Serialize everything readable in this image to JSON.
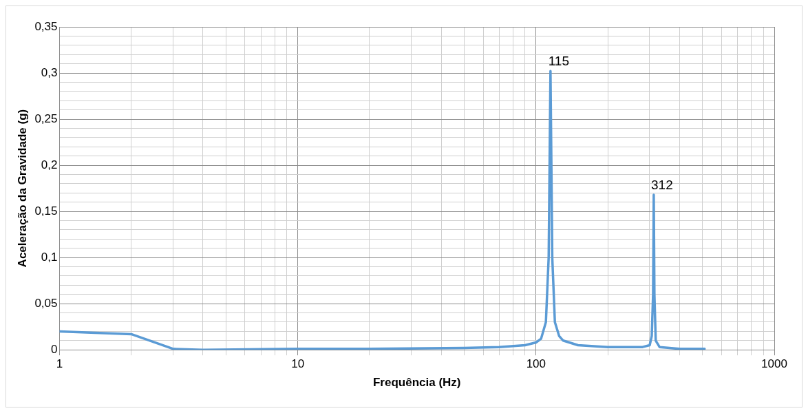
{
  "chart_data": {
    "type": "line",
    "xlabel": "Frequência (Hz)",
    "ylabel": "Aceleração da Gravidade (g)",
    "log": "x",
    "grid": true,
    "legend": false,
    "marker": "none",
    "line_style": "solid",
    "xlim": [
      1,
      1000
    ],
    "xticks": [
      1,
      {
        "value": 2,
        "label": null
      },
      {
        "value": 3,
        "label": null
      },
      {
        "value": 4,
        "label": null
      },
      {
        "value": 5,
        "label": null
      },
      {
        "value": 6,
        "label": null
      },
      {
        "value": 7,
        "label": null
      },
      {
        "value": 8,
        "label": null
      },
      {
        "value": 9,
        "label": null
      },
      10,
      {
        "value": 20,
        "label": null
      },
      {
        "value": 30,
        "label": null
      },
      {
        "value": 40,
        "label": null
      },
      {
        "value": 50,
        "label": null
      },
      {
        "value": 60,
        "label": null
      },
      {
        "value": 70,
        "label": null
      },
      {
        "value": 80,
        "label": null
      },
      {
        "value": 90,
        "label": null
      },
      100,
      {
        "value": 200,
        "label": null
      },
      {
        "value": 300,
        "label": null
      },
      {
        "value": 400,
        "label": null
      },
      {
        "value": 500,
        "label": null
      },
      {
        "value": 600,
        "label": null
      },
      {
        "value": 700,
        "label": null
      },
      {
        "value": 800,
        "label": null
      },
      {
        "value": 900,
        "label": null
      },
      1000
    ],
    "ylim": [
      0,
      0.35
    ],
    "yticks": [
      0,
      {
        "value": 0.01,
        "label": null
      },
      {
        "value": 0.02,
        "label": null
      },
      {
        "value": 0.03,
        "label": null
      },
      {
        "value": 0.04,
        "label": null
      },
      {
        "value": 0.05,
        "label": "0,05"
      },
      {
        "value": 0.06,
        "label": null
      },
      {
        "value": 0.07,
        "label": null
      },
      {
        "value": 0.08,
        "label": null
      },
      {
        "value": 0.09,
        "label": null
      },
      {
        "value": 0.1,
        "label": "0,1"
      },
      {
        "value": 0.11,
        "label": null
      },
      {
        "value": 0.12,
        "label": null
      },
      {
        "value": 0.13,
        "label": null
      },
      {
        "value": 0.14,
        "label": null
      },
      {
        "value": 0.15,
        "label": "0,15"
      },
      {
        "value": 0.16,
        "label": null
      },
      {
        "value": 0.17,
        "label": null
      },
      {
        "value": 0.18,
        "label": null
      },
      {
        "value": 0.19,
        "label": null
      },
      {
        "value": 0.2,
        "label": "0,2"
      },
      {
        "value": 0.21,
        "label": null
      },
      {
        "value": 0.22,
        "label": null
      },
      {
        "value": 0.23,
        "label": null
      },
      {
        "value": 0.24,
        "label": null
      },
      {
        "value": 0.25,
        "label": "0,25"
      },
      {
        "value": 0.26,
        "label": null
      },
      {
        "value": 0.27,
        "label": null
      },
      {
        "value": 0.28,
        "label": null
      },
      {
        "value": 0.29,
        "label": null
      },
      {
        "value": 0.3,
        "label": "0,3"
      },
      {
        "value": 0.31,
        "label": null
      },
      {
        "value": 0.32,
        "label": null
      },
      {
        "value": 0.33,
        "label": null
      },
      {
        "value": 0.34,
        "label": null
      },
      {
        "value": 0.35,
        "label": "0,35"
      }
    ],
    "x": [
      1,
      2,
      3,
      4,
      10,
      20,
      50,
      70,
      90,
      100,
      105,
      110,
      113,
      115,
      117,
      120,
      125,
      130,
      150,
      200,
      280,
      300,
      306,
      310,
      312,
      314,
      318,
      330,
      400,
      500,
      510
    ],
    "series": [
      {
        "color": "#5b9bd5",
        "values": [
          0.02,
          0.017,
          0.001,
          0,
          0.001,
          0.001,
          0.002,
          0.003,
          0.005,
          0.008,
          0.012,
          0.03,
          0.1,
          0.302,
          0.1,
          0.03,
          0.015,
          0.01,
          0.005,
          0.003,
          0.003,
          0.005,
          0.015,
          0.06,
          0.168,
          0.06,
          0.01,
          0.003,
          0.001,
          0.001,
          0.001
        ]
      }
    ],
    "annotations": [
      {
        "text": "115",
        "x": 115,
        "y": 0.302
      },
      {
        "text": "312",
        "x": 312,
        "y": 0.168
      }
    ]
  }
}
